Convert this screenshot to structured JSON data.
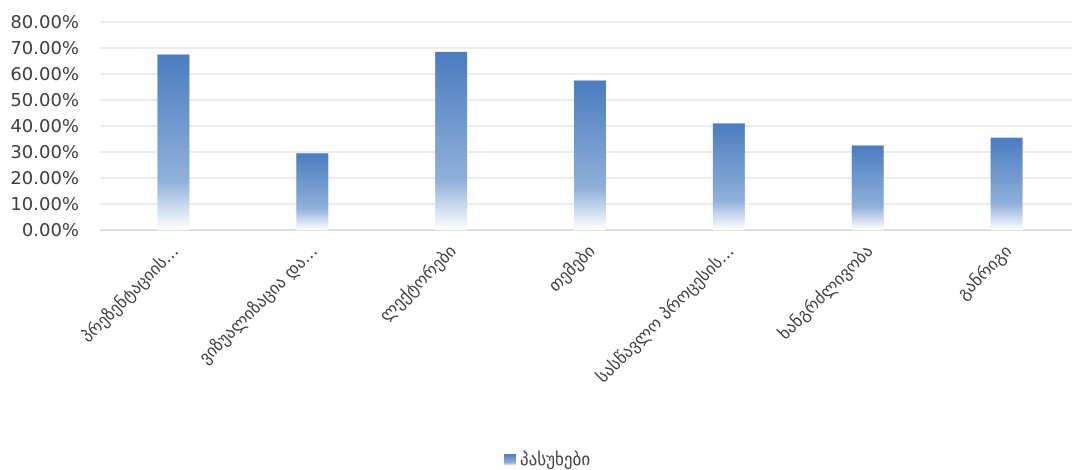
{
  "chart_data": {
    "type": "bar",
    "categories": [
      "პრეზენტაციის...",
      "ვიზუალიზაცია და...",
      "ლექტორები",
      "თემები",
      "სასწავლო პროცესის...",
      "ხანგრძლივობა",
      "განრიგი"
    ],
    "series": [
      {
        "name": "პასუხები",
        "values": [
          0.675,
          0.295,
          0.685,
          0.575,
          0.41,
          0.325,
          0.355
        ]
      }
    ],
    "y_ticks": [
      "0.00%",
      "10.00%",
      "20.00%",
      "30.00%",
      "40.00%",
      "50.00%",
      "60.00%",
      "70.00%",
      "80.00%"
    ],
    "ylim": [
      0,
      0.8
    ],
    "grid": true,
    "legend_position": "bottom",
    "colors": {
      "bar": "#4a7cc0",
      "bar_light": "#ffffff",
      "grid": "#d9d9d9",
      "axis": "#bfbfbf"
    }
  }
}
